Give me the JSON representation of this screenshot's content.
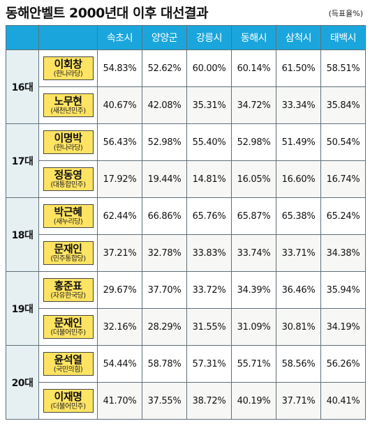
{
  "header": {
    "title": "동해안벨트 2000년대 이후 대선결과",
    "unit_note": "(득표율%)"
  },
  "columns": [
    "속초시",
    "양양군",
    "강릉시",
    "동해시",
    "삼척시",
    "태백시"
  ],
  "terms": [
    {
      "label": "16대",
      "candidates": [
        {
          "name": "이회창",
          "party": "(한나라당)",
          "values": [
            "54.83%",
            "52.62%",
            "60.00%",
            "60.14%",
            "61.50%",
            "58.51%"
          ]
        },
        {
          "name": "노무현",
          "party": "(새천년민주)",
          "values": [
            "40.67%",
            "42.08%",
            "35.31%",
            "34.72%",
            "33.34%",
            "35.84%"
          ]
        }
      ]
    },
    {
      "label": "17대",
      "candidates": [
        {
          "name": "이명박",
          "party": "(한나라당)",
          "values": [
            "56.43%",
            "52.98%",
            "55.40%",
            "52.98%",
            "51.49%",
            "50.54%"
          ]
        },
        {
          "name": "정동영",
          "party": "(대통합민주)",
          "values": [
            "17.92%",
            "19.44%",
            "14.81%",
            "16.05%",
            "16.60%",
            "16.74%"
          ]
        }
      ]
    },
    {
      "label": "18대",
      "candidates": [
        {
          "name": "박근혜",
          "party": "(새누리당)",
          "values": [
            "62.44%",
            "66.86%",
            "65.76%",
            "65.87%",
            "65.38%",
            "65.24%"
          ]
        },
        {
          "name": "문재인",
          "party": "(민주통합당)",
          "values": [
            "37.21%",
            "32.78%",
            "33.83%",
            "33.74%",
            "33.71%",
            "34.38%"
          ]
        }
      ]
    },
    {
      "label": "19대",
      "candidates": [
        {
          "name": "홍준표",
          "party": "(자유한국당)",
          "values": [
            "29.67%",
            "37.70%",
            "33.72%",
            "34.39%",
            "36.46%",
            "35.94%"
          ]
        },
        {
          "name": "문재인",
          "party": "(더불어민주)",
          "values": [
            "32.16%",
            "28.29%",
            "31.55%",
            "31.09%",
            "30.81%",
            "34.19%"
          ]
        }
      ]
    },
    {
      "label": "20대",
      "candidates": [
        {
          "name": "윤석열",
          "party": "(국민의힘)",
          "values": [
            "54.44%",
            "58.78%",
            "57.31%",
            "55.71%",
            "58.56%",
            "56.26%"
          ]
        },
        {
          "name": "이재명",
          "party": "(더불어민주)",
          "values": [
            "41.70%",
            "37.55%",
            "38.72%",
            "40.19%",
            "37.71%",
            "40.41%"
          ]
        }
      ]
    }
  ],
  "colors": {
    "header_bg": "#1aa6dc",
    "candidate_box": "#ffe463",
    "term_bg": "#e6f0f3"
  }
}
